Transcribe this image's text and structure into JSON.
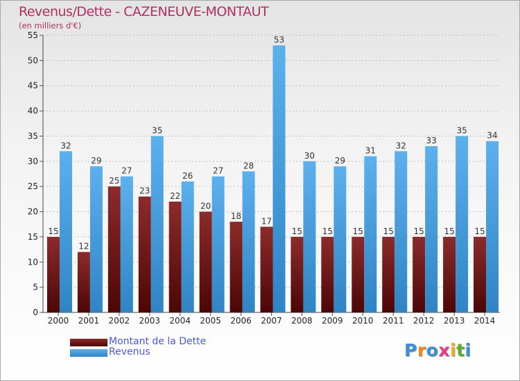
{
  "header": {
    "title": "Revenus/Dette - CAZENEUVE-MONTAUT",
    "subtitle": "(en milliers d'€)"
  },
  "colors": {
    "dette_top": "#8c2b2b",
    "dette_bottom": "#4c0606",
    "revenus_top": "#5cb0ec",
    "revenus_bottom": "#2f84c4",
    "title": "#b03060",
    "legend_text": "#4a5ad8",
    "grid": "#bdbdbd"
  },
  "legend": {
    "dette_label": "Montant de la Dette",
    "revenus_label": "Revenus"
  },
  "logo": {
    "text": "Proxiti",
    "letter_colors": [
      "#3a8fd8",
      "#f08a1c",
      "#3a8fd8",
      "#e83a8a",
      "#f0b01c",
      "#5ab02c",
      "#3a8fd8"
    ]
  },
  "chart_data": {
    "type": "bar",
    "categories": [
      "2000",
      "2001",
      "2002",
      "2003",
      "2004",
      "2005",
      "2006",
      "2007",
      "2008",
      "2009",
      "2010",
      "2011",
      "2012",
      "2013",
      "2014"
    ],
    "series": [
      {
        "name": "Montant de la Dette",
        "values": [
          15,
          12,
          25,
          23,
          22,
          20,
          18,
          17,
          15,
          15,
          15,
          15,
          15,
          15,
          15
        ]
      },
      {
        "name": "Revenus",
        "values": [
          32,
          29,
          27,
          35,
          26,
          27,
          28,
          53,
          30,
          29,
          31,
          32,
          33,
          35,
          34
        ]
      }
    ],
    "title": "Revenus/Dette - CAZENEUVE-MONTAUT",
    "subtitle": "(en milliers d'€)",
    "xlabel": "",
    "ylabel": "",
    "ylim": [
      0,
      55
    ],
    "yticks": [
      0,
      5,
      10,
      15,
      20,
      25,
      30,
      35,
      40,
      45,
      50,
      55
    ],
    "grid": true,
    "data_labels": true,
    "legend_position": "bottom-left"
  }
}
